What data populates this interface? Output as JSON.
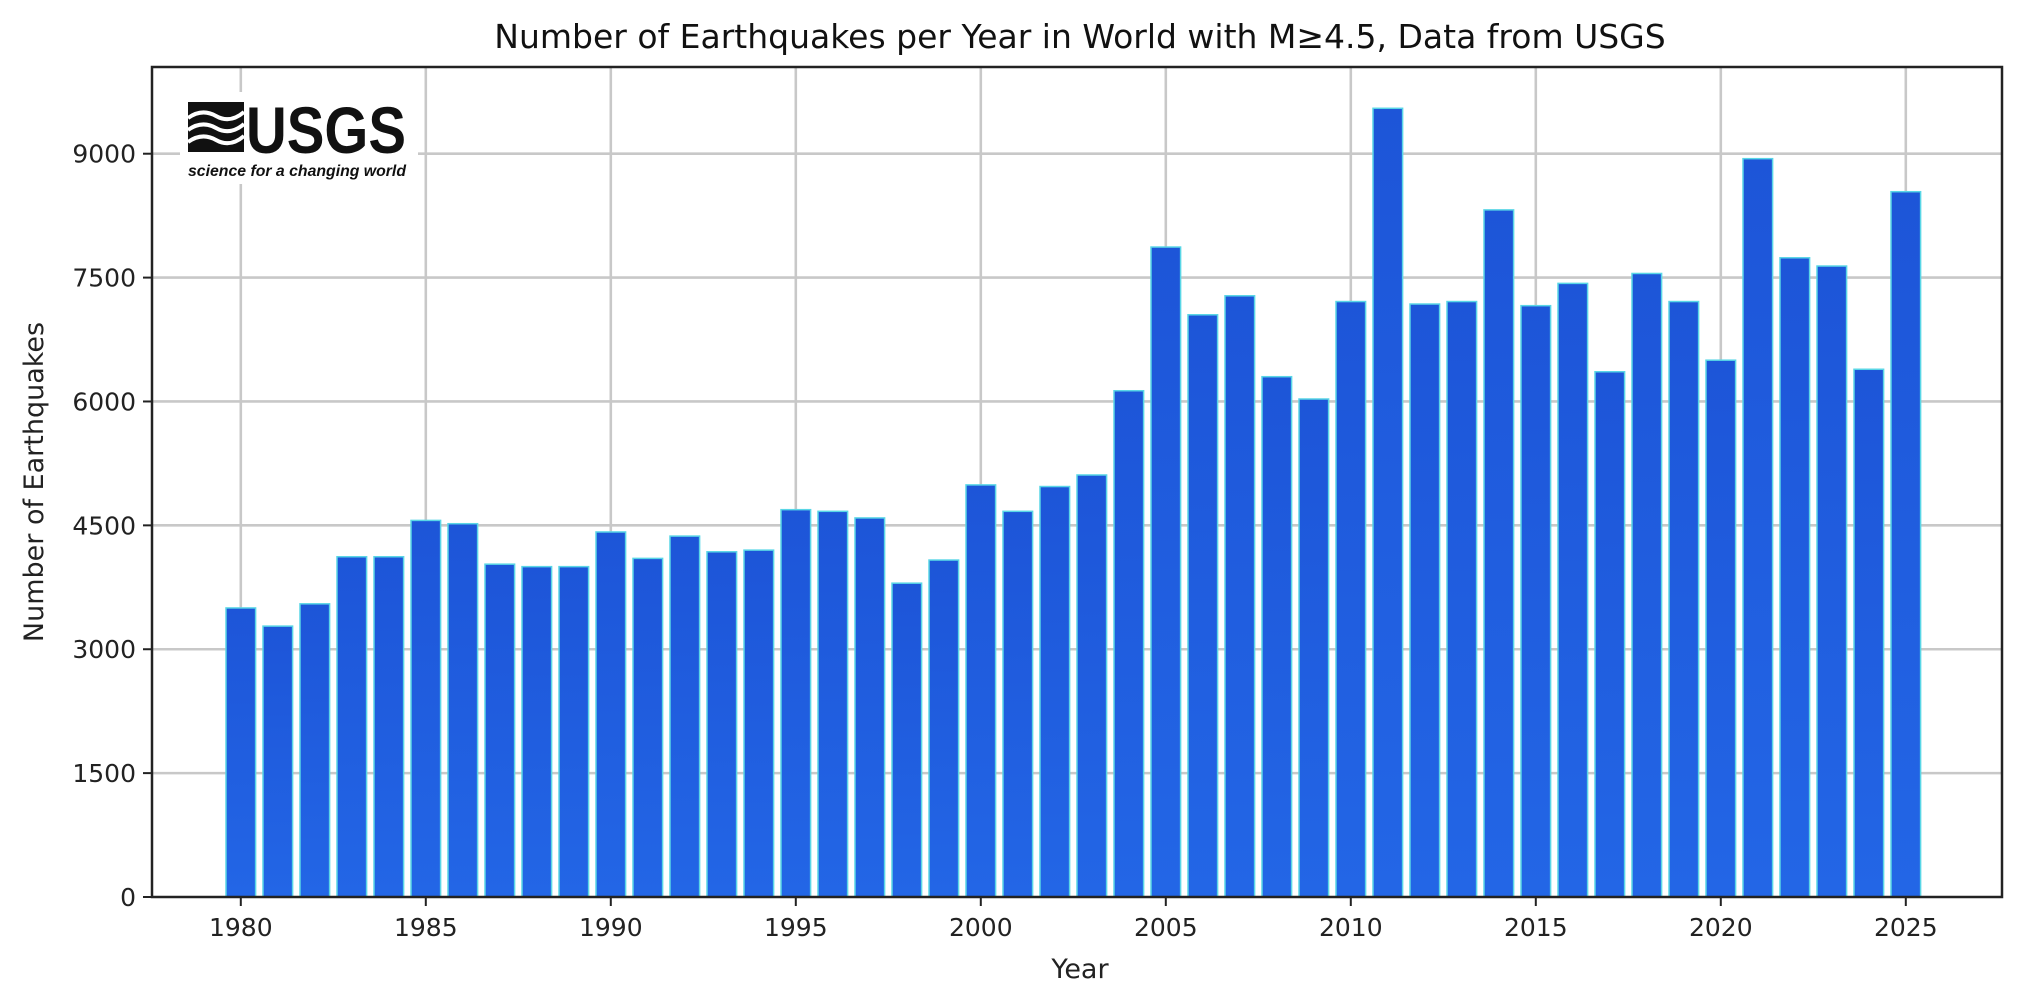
{
  "logo": {
    "wordmark": "USGS",
    "tagline": "science for a changing world"
  },
  "colors": {
    "bar": "#2366e6",
    "bar_top": "#1d55d8",
    "bar_edge": "#59d6e6",
    "grid": "#c8c8c8",
    "axis": "#222222"
  },
  "chart_data": {
    "type": "bar",
    "title": "Number of Earthquakes per Year in World with M≥4.5, Data from USGS",
    "xlabel": "Year",
    "ylabel": "Number of Earthquakes",
    "x": [
      1980,
      1981,
      1982,
      1983,
      1984,
      1985,
      1986,
      1987,
      1988,
      1989,
      1990,
      1991,
      1992,
      1993,
      1994,
      1995,
      1996,
      1997,
      1998,
      1999,
      2000,
      2001,
      2002,
      2003,
      2004,
      2005,
      2006,
      2007,
      2008,
      2009,
      2010,
      2011,
      2012,
      2013,
      2014,
      2015,
      2016,
      2017,
      2018,
      2019,
      2020,
      2021,
      2022,
      2023,
      2024,
      2025
    ],
    "values": [
      3500,
      3280,
      3550,
      4120,
      4120,
      4560,
      4520,
      4030,
      4000,
      4000,
      4420,
      4100,
      4370,
      4180,
      4200,
      4690,
      4670,
      4590,
      3800,
      4080,
      4990,
      4670,
      4970,
      5110,
      6130,
      7870,
      7050,
      7280,
      6300,
      6030,
      7210,
      9550,
      7180,
      7210,
      8320,
      7160,
      7430,
      6360,
      7550,
      7210,
      6500,
      8940,
      7740,
      7640,
      6390,
      8540
    ],
    "xticks": [
      "1980",
      "1985",
      "1990",
      "1995",
      "2000",
      "2005",
      "2010",
      "2015",
      "2020",
      "2025"
    ],
    "yticks": [
      "0",
      "1500",
      "3000",
      "4500",
      "6000",
      "7500",
      "9000"
    ],
    "xlim": [
      1977.6,
      2027.6
    ],
    "ylim": [
      0,
      10050
    ],
    "grid": true,
    "legend": "none"
  }
}
